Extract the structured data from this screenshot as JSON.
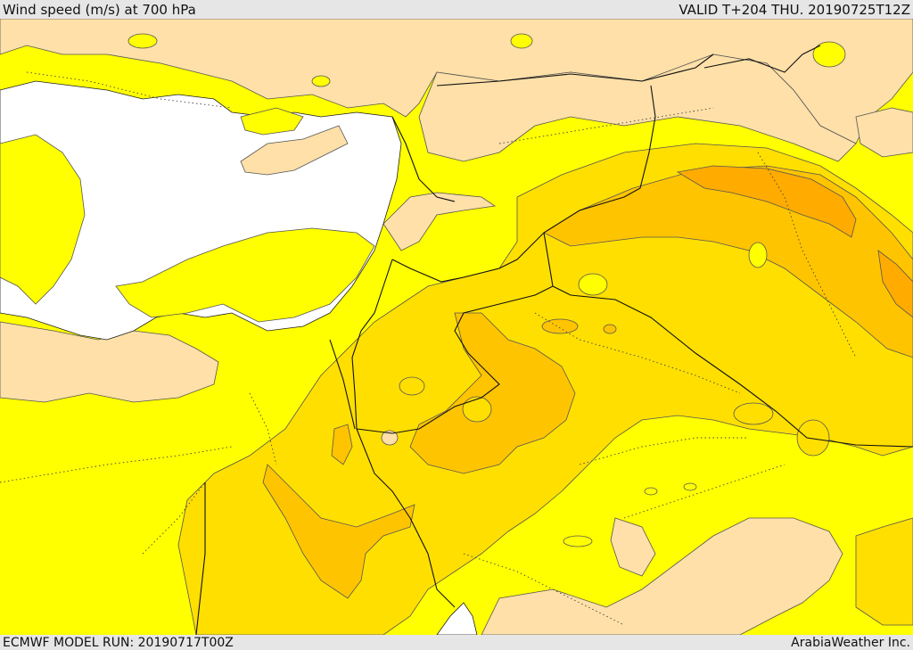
{
  "header": {
    "title": "Wind speed (m/s) at 700 hPa",
    "valid_time": "VALID T+204 THU. 20190725T12Z"
  },
  "footer": {
    "model_run": "ECMWF MODEL RUN: 20190717T00Z",
    "credit": "ArabiaWeather Inc."
  },
  "map": {
    "colors": {
      "sea": "#ffffff",
      "lowest_band": "#ffe0a8",
      "band_1": "#ffff00",
      "band_2": "#ffdf00",
      "band_3": "#ffc400",
      "band_4": "#ffab00",
      "contour": "#555555",
      "border": "#111111"
    }
  }
}
